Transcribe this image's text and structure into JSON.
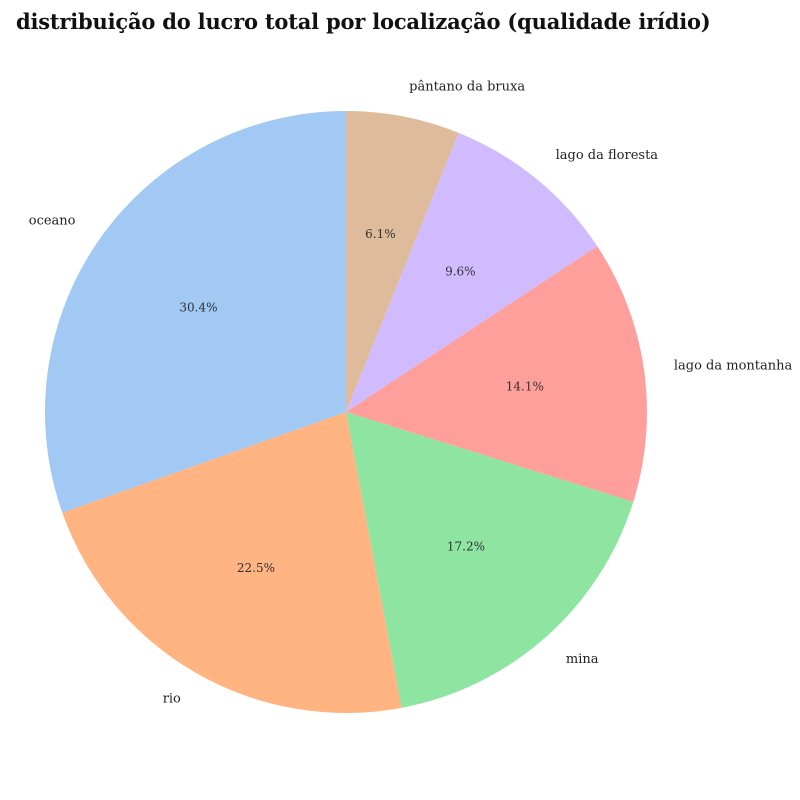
{
  "chart_data": {
    "type": "pie",
    "title": "distribuição do lucro total por localização (qualidade irídio)",
    "start_angle_deg": 90,
    "direction": "clockwise",
    "slices": [
      {
        "label": "pântano da bruxa",
        "value": 6.1,
        "pct_label": "6.1%",
        "color": "#debb9b"
      },
      {
        "label": "lago da floresta",
        "value": 9.6,
        "pct_label": "9.6%",
        "color": "#d0bbff"
      },
      {
        "label": "lago da montanha",
        "value": 14.1,
        "pct_label": "14.1%",
        "color": "#ff9f9b"
      },
      {
        "label": "mina",
        "value": 17.2,
        "pct_label": "17.2%",
        "color": "#8de5a1"
      },
      {
        "label": "rio",
        "value": 22.5,
        "pct_label": "22.5%",
        "color": "#ffb482"
      },
      {
        "label": "oceano",
        "value": 30.4,
        "pct_label": "30.4%",
        "color": "#a1c9f4"
      }
    ]
  }
}
